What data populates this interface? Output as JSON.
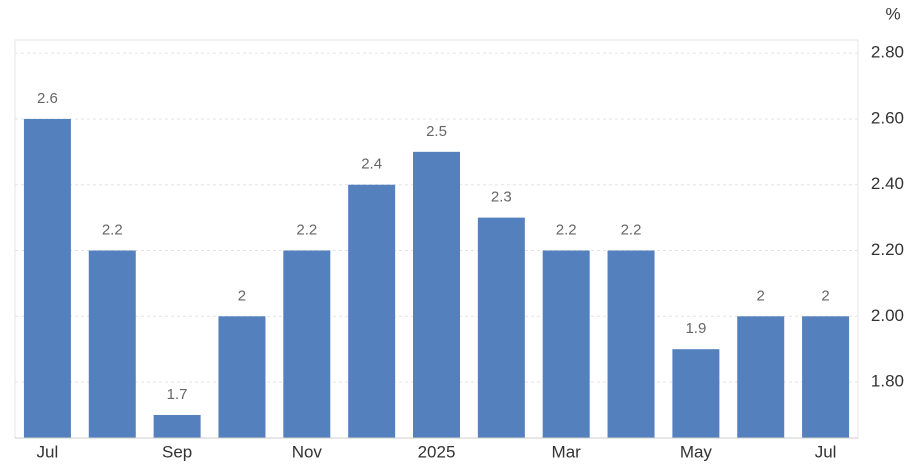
{
  "chart_data": {
    "type": "bar",
    "ylabel": "%",
    "categories": [
      "Jul",
      null,
      "Sep",
      null,
      "Nov",
      null,
      "2025",
      null,
      "Mar",
      null,
      "May",
      null,
      "Jul"
    ],
    "values": [
      2.6,
      2.2,
      1.7,
      2,
      2.2,
      2.4,
      2.5,
      2.3,
      2.2,
      2.2,
      1.9,
      2,
      2
    ],
    "color": "#5580be",
    "ylim": [
      1.63,
      2.84
    ],
    "yticks": [
      {
        "value": 1.8,
        "label": "1.80"
      },
      {
        "value": 2.0,
        "label": "2.00"
      },
      {
        "value": 2.2,
        "label": "2.20"
      },
      {
        "value": 2.4,
        "label": "2.40"
      },
      {
        "value": 2.6,
        "label": "2.60"
      },
      {
        "value": 2.8,
        "label": "2.80"
      }
    ],
    "grid": true
  }
}
